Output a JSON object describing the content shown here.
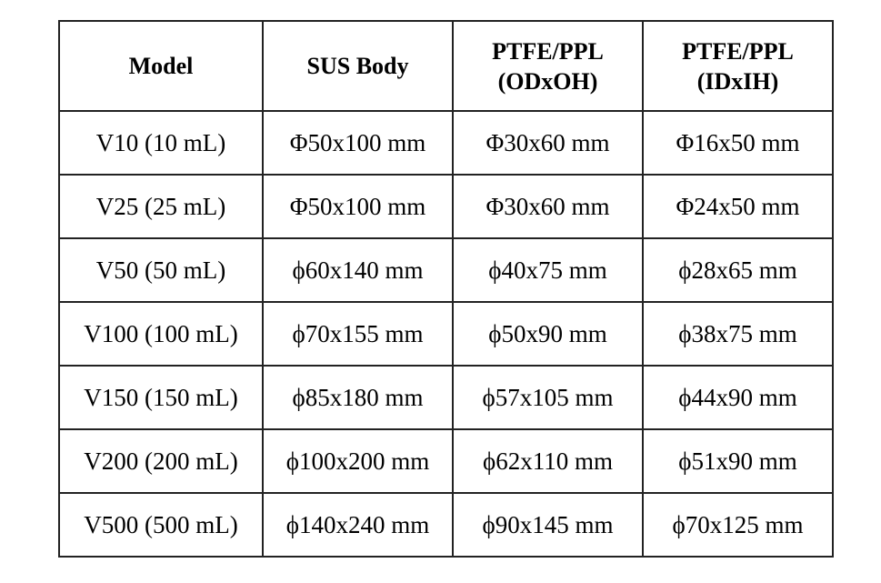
{
  "table": {
    "headers": [
      {
        "lines": [
          "Model"
        ]
      },
      {
        "lines": [
          "SUS Body"
        ]
      },
      {
        "lines": [
          "PTFE/PPL",
          "(ODxOH)"
        ]
      },
      {
        "lines": [
          "PTFE/PPL",
          "(IDxIH)"
        ]
      }
    ],
    "rows": [
      [
        "V10 (10 mL)",
        "Φ50x100 mm",
        "Φ30x60 mm",
        "Φ16x50 mm"
      ],
      [
        "V25 (25 mL)",
        "Φ50x100 mm",
        "Φ30x60 mm",
        "Φ24x50 mm"
      ],
      [
        "V50 (50 mL)",
        "ϕ60x140 mm",
        "ϕ40x75 mm",
        "ϕ28x65 mm"
      ],
      [
        "V100 (100 mL)",
        "ϕ70x155 mm",
        "ϕ50x90 mm",
        "ϕ38x75 mm"
      ],
      [
        "V150 (150 mL)",
        "ϕ85x180 mm",
        "ϕ57x105 mm",
        "ϕ44x90 mm"
      ],
      [
        "V200 (200 mL)",
        "ϕ100x200 mm",
        "ϕ62x110 mm",
        "ϕ51x90 mm"
      ],
      [
        "V500 (500 mL)",
        "ϕ140x240 mm",
        "ϕ90x145 mm",
        "ϕ70x125 mm"
      ]
    ]
  }
}
